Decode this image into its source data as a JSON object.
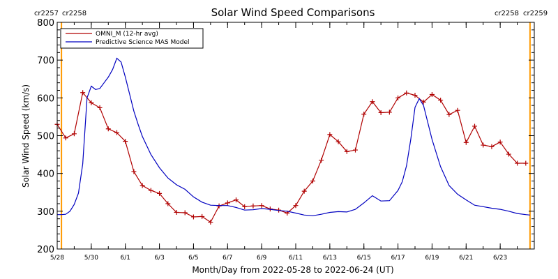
{
  "chart_data": {
    "type": "line",
    "title": "Solar Wind Speed Comparisons",
    "xlabel": "Month/Day from 2022-05-28 to 2022-06-24 (UT)",
    "ylabel": "Solar Wind Speed (km/s)",
    "xlim": [
      "2022-05-28",
      "2022-06-25"
    ],
    "ylim": [
      200,
      800
    ],
    "x_ticks": [
      {
        "date": "2022-05-28",
        "label": "5/28"
      },
      {
        "date": "2022-05-30",
        "label": "5/30"
      },
      {
        "date": "2022-06-01",
        "label": "6/1"
      },
      {
        "date": "2022-06-03",
        "label": "6/3"
      },
      {
        "date": "2022-06-05",
        "label": "6/5"
      },
      {
        "date": "2022-06-07",
        "label": "6/7"
      },
      {
        "date": "2022-06-09",
        "label": "6/9"
      },
      {
        "date": "2022-06-11",
        "label": "6/11"
      },
      {
        "date": "2022-06-13",
        "label": "6/13"
      },
      {
        "date": "2022-06-15",
        "label": "6/15"
      },
      {
        "date": "2022-06-17",
        "label": "6/17"
      },
      {
        "date": "2022-06-19",
        "label": "6/19"
      },
      {
        "date": "2022-06-21",
        "label": "6/21"
      },
      {
        "date": "2022-06-23",
        "label": "6/23"
      }
    ],
    "y_ticks": [
      {
        "value": 200,
        "label": "200"
      },
      {
        "value": 300,
        "label": "300"
      },
      {
        "value": 400,
        "label": "400"
      },
      {
        "value": 500,
        "label": "500"
      },
      {
        "value": 600,
        "label": "600"
      },
      {
        "value": 700,
        "label": "700"
      },
      {
        "value": 800,
        "label": "800"
      }
    ],
    "legend": {
      "placement": "top-left"
    },
    "rotation_markers": [
      {
        "date": "2022-05-28 06:00",
        "label_left": "cr2257",
        "label_right": "cr2258",
        "side": "left"
      },
      {
        "date": "2022-06-24 18:00",
        "label_left": "cr2258",
        "label_right": "cr2259",
        "side": "right"
      }
    ],
    "marker_color": "#ff9900",
    "series": [
      {
        "name": "OMNI_M (12-hr avg)",
        "color": "#b00000",
        "marker": "plus",
        "x": [
          "2022-05-28 00:00",
          "2022-05-28 12:00",
          "2022-05-29 00:00",
          "2022-05-29 12:00",
          "2022-05-30 00:00",
          "2022-05-30 12:00",
          "2022-05-31 00:00",
          "2022-05-31 12:00",
          "2022-06-01 00:00",
          "2022-06-01 12:00",
          "2022-06-02 00:00",
          "2022-06-02 12:00",
          "2022-06-03 00:00",
          "2022-06-03 12:00",
          "2022-06-04 00:00",
          "2022-06-04 12:00",
          "2022-06-05 00:00",
          "2022-06-05 12:00",
          "2022-06-06 00:00",
          "2022-06-06 12:00",
          "2022-06-07 00:00",
          "2022-06-07 12:00",
          "2022-06-08 00:00",
          "2022-06-08 12:00",
          "2022-06-09 00:00",
          "2022-06-09 12:00",
          "2022-06-10 00:00",
          "2022-06-10 12:00",
          "2022-06-11 00:00",
          "2022-06-11 12:00",
          "2022-06-12 00:00",
          "2022-06-12 12:00",
          "2022-06-13 00:00",
          "2022-06-13 12:00",
          "2022-06-14 00:00",
          "2022-06-14 12:00",
          "2022-06-15 00:00",
          "2022-06-15 12:00",
          "2022-06-16 00:00",
          "2022-06-16 12:00",
          "2022-06-17 00:00",
          "2022-06-17 12:00",
          "2022-06-18 00:00",
          "2022-06-18 12:00",
          "2022-06-19 00:00",
          "2022-06-19 12:00",
          "2022-06-20 00:00",
          "2022-06-20 12:00",
          "2022-06-21 00:00",
          "2022-06-21 12:00",
          "2022-06-22 00:00",
          "2022-06-22 12:00",
          "2022-06-23 00:00",
          "2022-06-23 12:00",
          "2022-06-24 00:00",
          "2022-06-24 12:00"
        ],
        "y": [
          530,
          494,
          505,
          614,
          587,
          574,
          518,
          508,
          485,
          405,
          368,
          355,
          347,
          320,
          297,
          296,
          285,
          286,
          271,
          314,
          322,
          330,
          312,
          314,
          315,
          306,
          303,
          295,
          315,
          353,
          380,
          435,
          503,
          484,
          458,
          462,
          557,
          590,
          561,
          562,
          600,
          613,
          607,
          589,
          609,
          594,
          556,
          567,
          482,
          525,
          475,
          471,
          483,
          451,
          427,
          427
        ]
      },
      {
        "name": "Predictive Science MAS Model",
        "color": "#0000c0",
        "marker": "none",
        "x": [
          "2022-05-28 00:00",
          "2022-05-28 06:00",
          "2022-05-28 12:00",
          "2022-05-28 18:00",
          "2022-05-29 00:00",
          "2022-05-29 06:00",
          "2022-05-29 12:00",
          "2022-05-29 18:00",
          "2022-05-30 00:00",
          "2022-05-30 06:00",
          "2022-05-30 12:00",
          "2022-05-30 18:00",
          "2022-05-31 00:00",
          "2022-05-31 06:00",
          "2022-05-31 12:00",
          "2022-05-31 18:00",
          "2022-06-01 00:00",
          "2022-06-01 06:00",
          "2022-06-01 12:00",
          "2022-06-01 18:00",
          "2022-06-02 00:00",
          "2022-06-02 12:00",
          "2022-06-03 00:00",
          "2022-06-03 12:00",
          "2022-06-04 00:00",
          "2022-06-04 12:00",
          "2022-06-05 00:00",
          "2022-06-05 12:00",
          "2022-06-06 00:00",
          "2022-06-06 12:00",
          "2022-06-07 00:00",
          "2022-06-07 12:00",
          "2022-06-08 00:00",
          "2022-06-08 12:00",
          "2022-06-09 00:00",
          "2022-06-09 12:00",
          "2022-06-10 00:00",
          "2022-06-10 12:00",
          "2022-06-11 00:00",
          "2022-06-11 12:00",
          "2022-06-12 00:00",
          "2022-06-12 12:00",
          "2022-06-13 00:00",
          "2022-06-13 12:00",
          "2022-06-14 00:00",
          "2022-06-14 12:00",
          "2022-06-15 00:00",
          "2022-06-15 12:00",
          "2022-06-16 00:00",
          "2022-06-16 12:00",
          "2022-06-17 00:00",
          "2022-06-17 06:00",
          "2022-06-17 12:00",
          "2022-06-17 18:00",
          "2022-06-18 00:00",
          "2022-06-18 06:00",
          "2022-06-18 12:00",
          "2022-06-18 18:00",
          "2022-06-19 00:00",
          "2022-06-19 12:00",
          "2022-06-20 00:00",
          "2022-06-20 12:00",
          "2022-06-21 00:00",
          "2022-06-21 12:00",
          "2022-06-22 00:00",
          "2022-06-22 12:00",
          "2022-06-23 00:00",
          "2022-06-23 12:00",
          "2022-06-24 00:00",
          "2022-06-24 12:00",
          "2022-06-24 18:00"
        ],
        "y": [
          291,
          291,
          292,
          300,
          318,
          348,
          425,
          600,
          631,
          622,
          625,
          640,
          655,
          675,
          705,
          695,
          655,
          610,
          565,
          530,
          498,
          450,
          415,
          388,
          370,
          358,
          338,
          324,
          316,
          315,
          315,
          310,
          303,
          304,
          307,
          305,
          302,
          300,
          295,
          290,
          288,
          292,
          297,
          299,
          298,
          305,
          322,
          341,
          327,
          328,
          355,
          378,
          420,
          490,
          575,
          598,
          580,
          535,
          490,
          418,
          368,
          345,
          330,
          316,
          312,
          308,
          305,
          300,
          294,
          291,
          290
        ]
      }
    ]
  }
}
